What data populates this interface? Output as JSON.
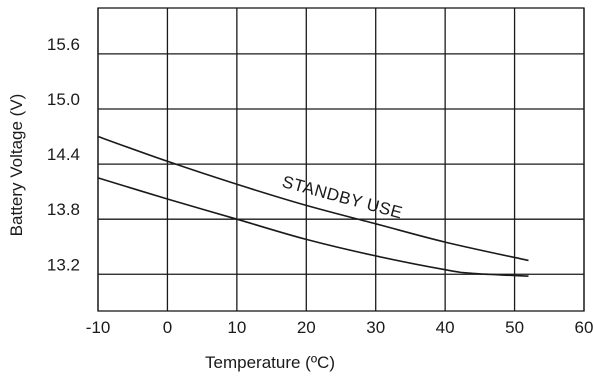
{
  "chart_data": {
    "type": "line",
    "title": "",
    "xlabel": "Temperature (ºC)",
    "ylabel": "Battery Voltage (V)",
    "xlim": [
      -10,
      60
    ],
    "ylim": [
      12.8,
      16.1
    ],
    "x_ticks": [
      "-10",
      "0",
      "10",
      "20",
      "30",
      "40",
      "50",
      "60"
    ],
    "x_tick_values": [
      -10,
      0,
      10,
      20,
      30,
      40,
      50,
      60
    ],
    "y_ticks": [
      "15.6",
      "15.0",
      "14.4",
      "13.8",
      "13.2"
    ],
    "y_tick_values": [
      15.6,
      15.0,
      14.4,
      13.8,
      13.2
    ],
    "grid": true,
    "series": [
      {
        "x": [
          -10,
          0,
          10,
          20,
          30,
          40,
          52
        ],
        "y": [
          14.7,
          14.43,
          14.18,
          13.95,
          13.75,
          13.55,
          13.35
        ]
      },
      {
        "x": [
          -10,
          0,
          10,
          20,
          30,
          40,
          44,
          52
        ],
        "y": [
          14.25,
          14.02,
          13.8,
          13.58,
          13.4,
          13.25,
          13.21,
          13.18
        ]
      }
    ],
    "annotations": [
      {
        "text": "STANDBY USE",
        "x": 25,
        "y": 13.98,
        "angle": 15
      }
    ]
  }
}
